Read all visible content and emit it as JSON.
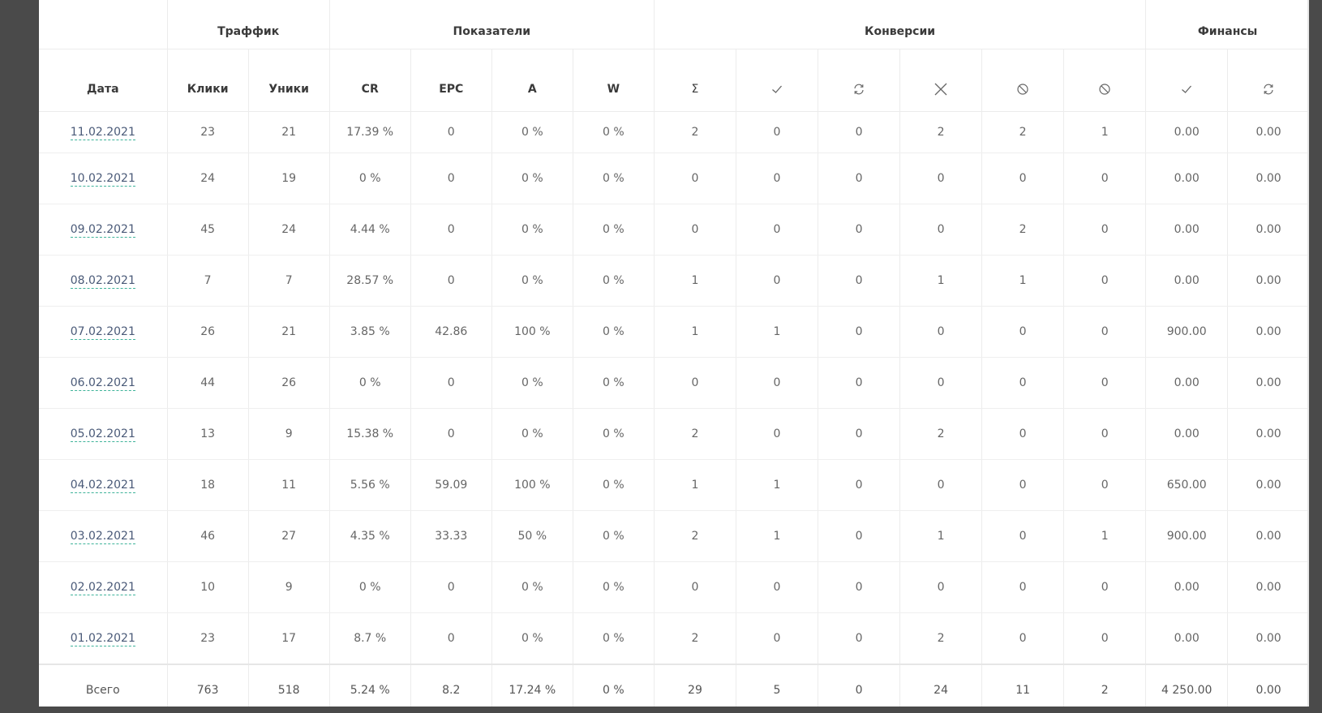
{
  "groups": {
    "traffic": "Траффик",
    "metrics": "Показатели",
    "conversions": "Конверсии",
    "finance": "Финансы"
  },
  "columns": {
    "date": "Дата",
    "clicks": "Клики",
    "uniques": "Уники",
    "cr": "CR",
    "epc": "EPC",
    "a": "A",
    "w": "W",
    "sum": "Σ"
  },
  "icons": {
    "conv_approved": "check-icon",
    "conv_pending": "refresh-icon",
    "conv_rejected": "cross-icon",
    "conv_trash": "ban-icon",
    "conv_fraud": "ban-icon",
    "fin_approved": "check-icon",
    "fin_pending": "refresh-icon"
  },
  "rows": [
    {
      "date": "11.02.2021",
      "clicks": "23",
      "uniques": "21",
      "cr": "17.39 %",
      "epc": "0",
      "a": "0 %",
      "w": "0 %",
      "sum": "2",
      "approved": "0",
      "pending": "0",
      "rejected": "2",
      "trash": "2",
      "fraud": "1",
      "fin_approved": "0.00",
      "fin_pending": "0.00"
    },
    {
      "date": "10.02.2021",
      "clicks": "24",
      "uniques": "19",
      "cr": "0 %",
      "epc": "0",
      "a": "0 %",
      "w": "0 %",
      "sum": "0",
      "approved": "0",
      "pending": "0",
      "rejected": "0",
      "trash": "0",
      "fraud": "0",
      "fin_approved": "0.00",
      "fin_pending": "0.00"
    },
    {
      "date": "09.02.2021",
      "clicks": "45",
      "uniques": "24",
      "cr": "4.44 %",
      "epc": "0",
      "a": "0 %",
      "w": "0 %",
      "sum": "0",
      "approved": "0",
      "pending": "0",
      "rejected": "0",
      "trash": "2",
      "fraud": "0",
      "fin_approved": "0.00",
      "fin_pending": "0.00"
    },
    {
      "date": "08.02.2021",
      "clicks": "7",
      "uniques": "7",
      "cr": "28.57 %",
      "epc": "0",
      "a": "0 %",
      "w": "0 %",
      "sum": "1",
      "approved": "0",
      "pending": "0",
      "rejected": "1",
      "trash": "1",
      "fraud": "0",
      "fin_approved": "0.00",
      "fin_pending": "0.00"
    },
    {
      "date": "07.02.2021",
      "clicks": "26",
      "uniques": "21",
      "cr": "3.85 %",
      "epc": "42.86",
      "a": "100 %",
      "w": "0 %",
      "sum": "1",
      "approved": "1",
      "pending": "0",
      "rejected": "0",
      "trash": "0",
      "fraud": "0",
      "fin_approved": "900.00",
      "fin_pending": "0.00"
    },
    {
      "date": "06.02.2021",
      "clicks": "44",
      "uniques": "26",
      "cr": "0 %",
      "epc": "0",
      "a": "0 %",
      "w": "0 %",
      "sum": "0",
      "approved": "0",
      "pending": "0",
      "rejected": "0",
      "trash": "0",
      "fraud": "0",
      "fin_approved": "0.00",
      "fin_pending": "0.00"
    },
    {
      "date": "05.02.2021",
      "clicks": "13",
      "uniques": "9",
      "cr": "15.38 %",
      "epc": "0",
      "a": "0 %",
      "w": "0 %",
      "sum": "2",
      "approved": "0",
      "pending": "0",
      "rejected": "2",
      "trash": "0",
      "fraud": "0",
      "fin_approved": "0.00",
      "fin_pending": "0.00"
    },
    {
      "date": "04.02.2021",
      "clicks": "18",
      "uniques": "11",
      "cr": "5.56 %",
      "epc": "59.09",
      "a": "100 %",
      "w": "0 %",
      "sum": "1",
      "approved": "1",
      "pending": "0",
      "rejected": "0",
      "trash": "0",
      "fraud": "0",
      "fin_approved": "650.00",
      "fin_pending": "0.00"
    },
    {
      "date": "03.02.2021",
      "clicks": "46",
      "uniques": "27",
      "cr": "4.35 %",
      "epc": "33.33",
      "a": "50 %",
      "w": "0 %",
      "sum": "2",
      "approved": "1",
      "pending": "0",
      "rejected": "1",
      "trash": "0",
      "fraud": "1",
      "fin_approved": "900.00",
      "fin_pending": "0.00"
    },
    {
      "date": "02.02.2021",
      "clicks": "10",
      "uniques": "9",
      "cr": "0 %",
      "epc": "0",
      "a": "0 %",
      "w": "0 %",
      "sum": "0",
      "approved": "0",
      "pending": "0",
      "rejected": "0",
      "trash": "0",
      "fraud": "0",
      "fin_approved": "0.00",
      "fin_pending": "0.00"
    },
    {
      "date": "01.02.2021",
      "clicks": "23",
      "uniques": "17",
      "cr": "8.7 %",
      "epc": "0",
      "a": "0 %",
      "w": "0 %",
      "sum": "2",
      "approved": "0",
      "pending": "0",
      "rejected": "2",
      "trash": "0",
      "fraud": "0",
      "fin_approved": "0.00",
      "fin_pending": "0.00"
    }
  ],
  "total": {
    "label": "Всего",
    "clicks": "763",
    "uniques": "518",
    "cr": "5.24 %",
    "epc": "8.2",
    "a": "17.24 %",
    "w": "0 %",
    "sum": "29",
    "approved": "5",
    "pending": "0",
    "rejected": "24",
    "trash": "11",
    "fraud": "2",
    "fin_approved": "4 250.00",
    "fin_pending": "0.00"
  },
  "colors": {
    "background": "#4a4a4a",
    "panel": "#ffffff",
    "date_link_underline": "#3fb39a"
  }
}
